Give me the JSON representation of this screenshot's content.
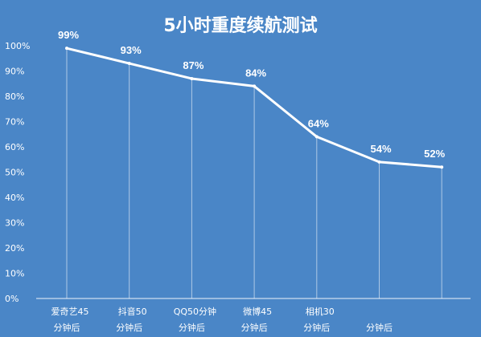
{
  "chart_data": {
    "type": "line",
    "title": "5小时重度续航测试",
    "xlabel": "",
    "ylabel": "",
    "ylim": [
      0,
      100
    ],
    "yticks": [
      "0%",
      "10%",
      "20%",
      "30%",
      "40%",
      "50%",
      "60%",
      "70%",
      "80%",
      "90%",
      "100%"
    ],
    "categories": [
      [
        "爱奇艺45",
        "分钟后"
      ],
      [
        "抖音50",
        "分钟后"
      ],
      [
        "QQ50分钟",
        "分钟后"
      ],
      [
        "微博45",
        "分钟后"
      ],
      [
        "相机30",
        "分钟后"
      ],
      [
        "",
        "分钟后"
      ],
      [
        "",
        ""
      ]
    ],
    "series": [
      {
        "values": [
          99,
          93,
          87,
          84,
          64,
          54,
          52
        ],
        "labels": [
          "99%",
          "93%",
          "87%",
          "84%",
          "64%",
          "54%",
          "52%"
        ]
      }
    ],
    "grid": false,
    "legend": "none",
    "colors": {
      "background": "#4a86c7",
      "line": "#ffffff",
      "text": "#ffffff",
      "axis": "#ffffff"
    }
  }
}
